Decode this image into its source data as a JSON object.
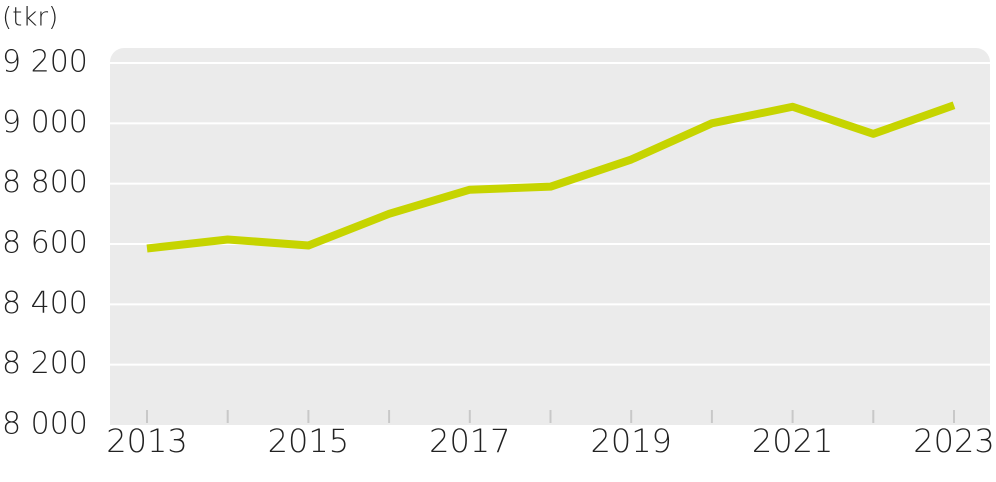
{
  "chart_data": {
    "type": "line",
    "y_label": "(tkr)",
    "categories": [
      "2013",
      null,
      "2015",
      null,
      "2017",
      null,
      "2019",
      null,
      "2021",
      null,
      "2023"
    ],
    "values": [
      8585,
      8615,
      8595,
      8700,
      8780,
      8790,
      8880,
      9000,
      9055,
      8965,
      9060
    ],
    "color": "#c6d400",
    "ylim": [
      8000,
      9200
    ],
    "yticks": [
      {
        "value": 8000,
        "label": "8 000"
      },
      {
        "value": 8200,
        "label": "8 200"
      },
      {
        "value": 8400,
        "label": "8 400"
      },
      {
        "value": 8600,
        "label": "8 600"
      },
      {
        "value": 8800,
        "label": "8 800"
      },
      {
        "value": 9000,
        "label": "9 000"
      },
      {
        "value": 9200,
        "label": "9 200"
      }
    ],
    "grid": true
  }
}
